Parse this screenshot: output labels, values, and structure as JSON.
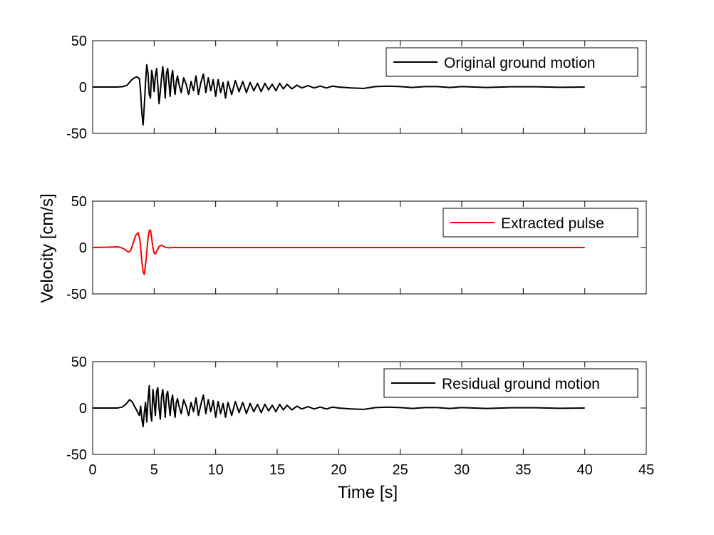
{
  "figure": {
    "ylabel": "Velocity [cm/s]",
    "xlabel": "Time [s]"
  },
  "chart_data": [
    {
      "type": "line",
      "panel": "top",
      "xlim": [
        0,
        45
      ],
      "ylim": [
        -50,
        50
      ],
      "x_ticks": [
        0,
        5,
        10,
        15,
        20,
        25,
        30,
        35,
        40,
        45
      ],
      "y_ticks": [
        -50,
        0,
        50
      ],
      "show_x_tick_labels": false,
      "grid": false,
      "legend_position": "top-right",
      "series": [
        {
          "name": "Original ground motion",
          "color": "#000000",
          "x": [
            0,
            2.0,
            2.5,
            2.8,
            3.0,
            3.2,
            3.4,
            3.6,
            3.8,
            3.9,
            4.0,
            4.1,
            4.2,
            4.3,
            4.4,
            4.5,
            4.6,
            4.7,
            4.8,
            4.9,
            5.0,
            5.1,
            5.2,
            5.3,
            5.4,
            5.5,
            5.6,
            5.7,
            5.8,
            5.9,
            6.0,
            6.1,
            6.2,
            6.3,
            6.4,
            6.5,
            6.6,
            6.7,
            6.8,
            6.9,
            7.0,
            7.2,
            7.4,
            7.6,
            7.8,
            8.0,
            8.2,
            8.4,
            8.6,
            8.8,
            9.0,
            9.2,
            9.4,
            9.6,
            9.8,
            10.0,
            10.2,
            10.4,
            10.6,
            10.8,
            11.0,
            11.3,
            11.6,
            11.9,
            12.2,
            12.5,
            12.8,
            13.1,
            13.4,
            13.7,
            14.0,
            14.3,
            14.6,
            14.9,
            15.2,
            15.5,
            15.8,
            16.2,
            16.6,
            17.0,
            17.5,
            18.0,
            18.5,
            19.0,
            19.5,
            20.0,
            21.0,
            22.0,
            23.0,
            24.0,
            25.0,
            26.0,
            27.0,
            28.0,
            29.0,
            30.0,
            32.0,
            34.0,
            36.0,
            38.0,
            40.0
          ],
          "y": [
            0,
            0,
            0.5,
            2,
            5,
            8,
            10,
            11,
            9,
            -5,
            -28,
            -41,
            -20,
            5,
            24,
            15,
            -8,
            -12,
            18,
            10,
            -5,
            12,
            20,
            2,
            -18,
            -5,
            10,
            22,
            8,
            -12,
            15,
            20,
            5,
            -10,
            10,
            18,
            2,
            -8,
            6,
            12,
            4,
            -6,
            10,
            3,
            -8,
            6,
            -4,
            12,
            -8,
            5,
            14,
            -6,
            10,
            -4,
            8,
            -10,
            8,
            -6,
            5,
            -12,
            6,
            -8,
            7,
            -5,
            6,
            -6,
            5,
            -4,
            4,
            -5,
            4,
            -3,
            3,
            -4,
            4,
            -2,
            3,
            -2,
            2,
            -1,
            1.5,
            -1,
            1,
            -1,
            1,
            0,
            -1,
            -1.5,
            0.5,
            1,
            0.5,
            -0.5,
            0.5,
            0.5,
            -0.5,
            0.5,
            -0.5,
            0.3,
            0.3,
            -0.3,
            0
          ]
        }
      ]
    },
    {
      "type": "line",
      "panel": "middle",
      "xlim": [
        0,
        45
      ],
      "ylim": [
        -50,
        50
      ],
      "x_ticks": [
        0,
        5,
        10,
        15,
        20,
        25,
        30,
        35,
        40,
        45
      ],
      "y_ticks": [
        -50,
        0,
        50
      ],
      "show_x_tick_labels": false,
      "grid": false,
      "legend_position": "top-right",
      "series": [
        {
          "name": "Extracted pulse",
          "color": "#ff0000",
          "x": [
            0,
            1.0,
            1.5,
            2.0,
            2.3,
            2.6,
            2.9,
            3.1,
            3.3,
            3.5,
            3.7,
            3.85,
            4.0,
            4.1,
            4.2,
            4.35,
            4.5,
            4.6,
            4.7,
            4.8,
            4.9,
            5.0,
            5.1,
            5.25,
            5.4,
            5.6,
            5.8,
            6.0,
            6.3,
            6.6,
            7.0,
            8.0,
            10.0,
            20.0,
            30.0,
            40.0
          ],
          "y": [
            0,
            0.3,
            0.5,
            0.8,
            0,
            -2,
            -5,
            -3,
            5,
            13,
            16,
            8,
            -15,
            -26,
            -29,
            -12,
            10,
            18,
            19,
            10,
            0,
            -6,
            -7,
            -3,
            1,
            2.5,
            1,
            0,
            -0.3,
            0.2,
            0,
            0,
            0,
            0,
            0,
            0
          ]
        }
      ]
    },
    {
      "type": "line",
      "panel": "bottom",
      "xlim": [
        0,
        45
      ],
      "ylim": [
        -50,
        50
      ],
      "x_ticks": [
        0,
        5,
        10,
        15,
        20,
        25,
        30,
        35,
        40,
        45
      ],
      "y_ticks": [
        -50,
        0,
        50
      ],
      "show_x_tick_labels": true,
      "grid": false,
      "legend_position": "top-right",
      "series": [
        {
          "name": "Residual ground motion",
          "color": "#000000",
          "x": [
            0,
            2.0,
            2.4,
            2.7,
            3.0,
            3.2,
            3.4,
            3.6,
            3.8,
            3.9,
            4.0,
            4.1,
            4.2,
            4.3,
            4.4,
            4.5,
            4.6,
            4.7,
            4.8,
            4.9,
            5.0,
            5.1,
            5.2,
            5.3,
            5.4,
            5.5,
            5.6,
            5.7,
            5.8,
            5.9,
            6.0,
            6.1,
            6.2,
            6.3,
            6.4,
            6.5,
            6.6,
            6.7,
            6.8,
            6.9,
            7.0,
            7.2,
            7.4,
            7.6,
            7.8,
            8.0,
            8.2,
            8.4,
            8.6,
            8.8,
            9.0,
            9.2,
            9.4,
            9.6,
            9.8,
            10.0,
            10.2,
            10.4,
            10.6,
            10.8,
            11.0,
            11.3,
            11.6,
            11.9,
            12.2,
            12.5,
            12.8,
            13.1,
            13.4,
            13.7,
            14.0,
            14.3,
            14.6,
            14.9,
            15.2,
            15.5,
            15.8,
            16.2,
            16.6,
            17.0,
            17.5,
            18.0,
            18.5,
            19.0,
            19.5,
            20.0,
            21.0,
            22.0,
            23.0,
            24.0,
            25.0,
            26.0,
            27.0,
            28.0,
            29.0,
            30.0,
            32.0,
            34.0,
            36.0,
            38.0,
            40.0
          ],
          "y": [
            0,
            0,
            1,
            4,
            9,
            7,
            2,
            -3,
            -8,
            2,
            -12,
            -20,
            -5,
            6,
            -15,
            8,
            24,
            -5,
            -14,
            20,
            6,
            -8,
            18,
            22,
            0,
            -12,
            12,
            20,
            6,
            -10,
            14,
            18,
            4,
            -8,
            8,
            14,
            0,
            -10,
            6,
            10,
            3,
            -6,
            9,
            2,
            -8,
            6,
            -4,
            11,
            -8,
            4,
            14,
            -6,
            9,
            -4,
            8,
            -10,
            7,
            -6,
            5,
            -10,
            6,
            -8,
            7,
            -5,
            6,
            -6,
            5,
            -4,
            4,
            -5,
            4,
            -3,
            3,
            -4,
            4,
            -2,
            3,
            -2,
            2,
            -1,
            1.5,
            -1,
            1,
            -1,
            1,
            0,
            -1,
            -1.5,
            0.5,
            1,
            0.5,
            -0.5,
            0.5,
            0.5,
            -0.5,
            0.5,
            -0.5,
            0.3,
            0.3,
            -0.3,
            0
          ]
        }
      ]
    }
  ]
}
